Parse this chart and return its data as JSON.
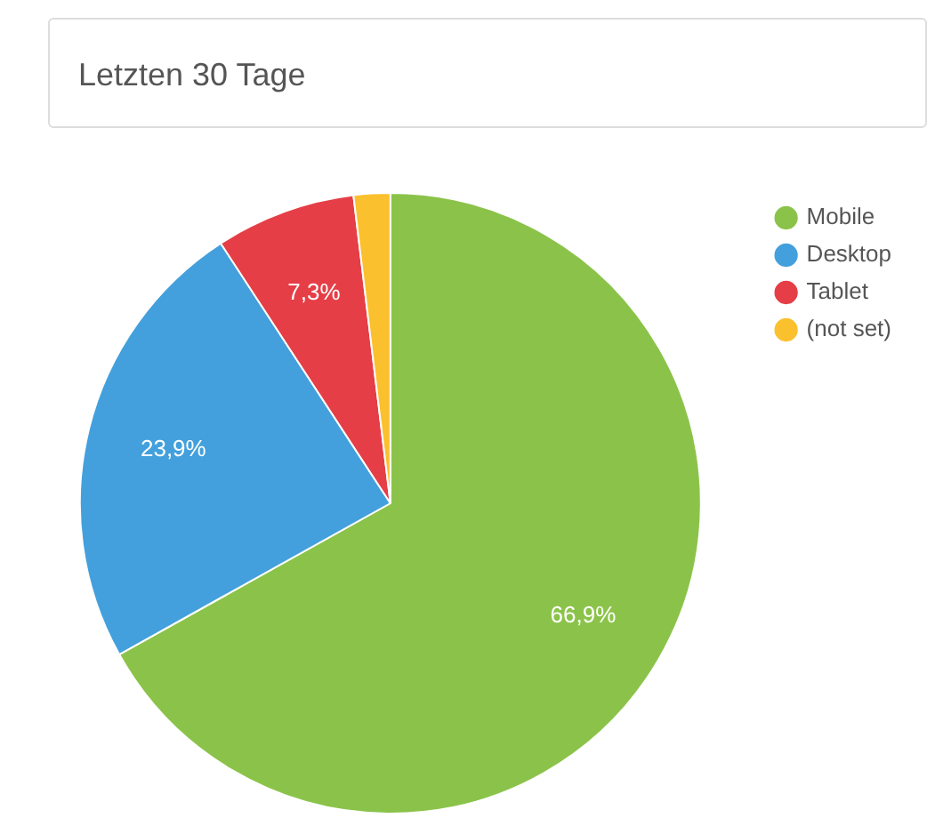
{
  "chart_data": {
    "type": "pie",
    "title": "Letzten 30 Tage",
    "categories": [
      "Mobile",
      "Desktop",
      "Tablet",
      "(not set)"
    ],
    "values": [
      66.9,
      23.9,
      7.3,
      1.9
    ],
    "colors": [
      "#8bc34a",
      "#43a0dc",
      "#e53e46",
      "#fbc02d"
    ],
    "value_labels": [
      "66,9%",
      "23,9%",
      "7,3%",
      null
    ],
    "legend": "top right"
  }
}
